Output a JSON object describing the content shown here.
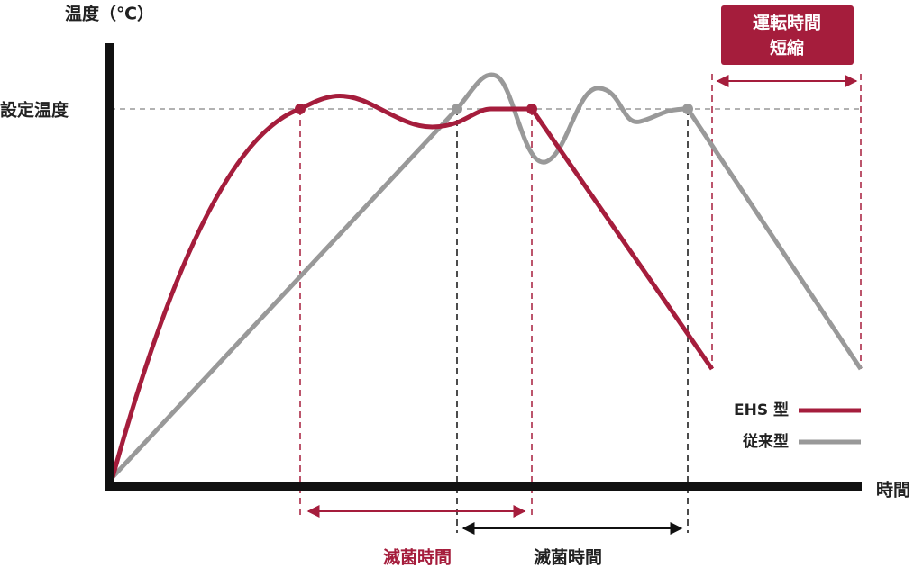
{
  "axes": {
    "y_label": "温度（℃）",
    "set_temp_label": "設定温度",
    "x_label": "時間"
  },
  "callout": {
    "lines": [
      "運転時間",
      "短縮"
    ]
  },
  "legend": [
    {
      "label": "EHS 型"
    },
    {
      "label": "従来型"
    }
  ],
  "spans": [
    {
      "label": "滅菌時間"
    },
    {
      "label": "滅菌時間"
    }
  ]
}
